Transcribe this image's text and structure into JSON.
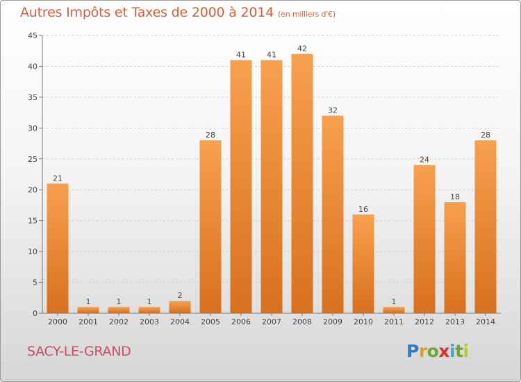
{
  "chart_data": {
    "type": "bar",
    "title": "Autres Impôts et Taxes de 2000 à 2014",
    "unit": "(en milliers d'€)",
    "categories": [
      "2000",
      "2001",
      "2002",
      "2003",
      "2004",
      "2005",
      "2006",
      "2007",
      "2008",
      "2009",
      "2010",
      "2011",
      "2012",
      "2013",
      "2014"
    ],
    "values": [
      21,
      1,
      1,
      1,
      2,
      28,
      41,
      41,
      42,
      32,
      16,
      1,
      24,
      18,
      28
    ],
    "ylim": [
      0,
      45
    ],
    "yticks": [
      0,
      5,
      10,
      15,
      20,
      25,
      30,
      35,
      40,
      45
    ],
    "grid": "horizontal dashed",
    "bar_color_top": "#f7a04e",
    "bar_color_bottom": "#d8701e"
  },
  "location": "SACY-LE-GRAND",
  "logo": {
    "letters": [
      "P",
      "r",
      "o",
      "x",
      "i",
      "t",
      "i"
    ]
  },
  "colors": {
    "title": "#d0603a",
    "location": "#cc4a6a"
  }
}
